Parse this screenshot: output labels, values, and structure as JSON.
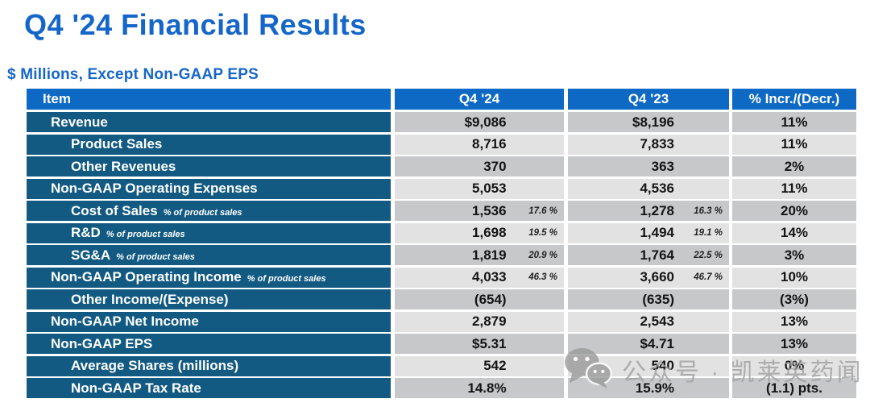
{
  "page": {
    "title": "Q4 '24 Financial Results",
    "subtitle": "$ Millions, Except Non-GAAP EPS"
  },
  "colors": {
    "title_blue": "#1566C9",
    "header_blue": "#0E69C5",
    "label_blue": "#125A82",
    "row_gray_dark": "#C7C8CA",
    "row_gray_light": "#E2E2E3",
    "watermark_gray": "#9F9F9F"
  },
  "table": {
    "headers": [
      "Item",
      "Q4 '24",
      "Q4 '23",
      "% Incr./(Decr.)"
    ],
    "rows": [
      {
        "label": "Revenue",
        "indent": false,
        "note": "",
        "q4_24": "$9,086",
        "q4_24_pct": "",
        "q4_23": "$8,196",
        "q4_23_pct": "",
        "change": "11%"
      },
      {
        "label": "Product Sales",
        "indent": true,
        "note": "",
        "q4_24": "8,716",
        "q4_24_pct": "",
        "q4_23": "7,833",
        "q4_23_pct": "",
        "change": "11%"
      },
      {
        "label": "Other Revenues",
        "indent": true,
        "note": "",
        "q4_24": "370",
        "q4_24_pct": "",
        "q4_23": "363",
        "q4_23_pct": "",
        "change": "2%"
      },
      {
        "label": "Non-GAAP Operating Expenses",
        "indent": false,
        "note": "",
        "q4_24": "5,053",
        "q4_24_pct": "",
        "q4_23": "4,536",
        "q4_23_pct": "",
        "change": "11%"
      },
      {
        "label": "Cost of Sales",
        "indent": true,
        "note": "% of product sales",
        "q4_24": "1,536",
        "q4_24_pct": "17.6 %",
        "q4_23": "1,278",
        "q4_23_pct": "16.3 %",
        "change": "20%"
      },
      {
        "label": "R&D",
        "indent": true,
        "note": "% of product sales",
        "q4_24": "1,698",
        "q4_24_pct": "19.5 %",
        "q4_23": "1,494",
        "q4_23_pct": "19.1 %",
        "change": "14%"
      },
      {
        "label": "SG&A",
        "indent": true,
        "note": "% of product sales",
        "q4_24": "1,819",
        "q4_24_pct": "20.9 %",
        "q4_23": "1,764",
        "q4_23_pct": "22.5 %",
        "change": "3%"
      },
      {
        "label": "Non-GAAP Operating Income",
        "indent": false,
        "note": "% of product sales",
        "q4_24": "4,033",
        "q4_24_pct": "46.3 %",
        "q4_23": "3,660",
        "q4_23_pct": "46.7 %",
        "change": "10%"
      },
      {
        "label": "Other Income/(Expense)",
        "indent": true,
        "note": "",
        "q4_24": "(654)",
        "q4_24_pct": "",
        "q4_23": "(635)",
        "q4_23_pct": "",
        "change": "(3%)"
      },
      {
        "label": "Non-GAAP Net Income",
        "indent": false,
        "note": "",
        "q4_24": "2,879",
        "q4_24_pct": "",
        "q4_23": "2,543",
        "q4_23_pct": "",
        "change": "13%"
      },
      {
        "label": "Non-GAAP EPS",
        "indent": false,
        "note": "",
        "q4_24": "$5.31",
        "q4_24_pct": "",
        "q4_23": "$4.71",
        "q4_23_pct": "",
        "change": "13%"
      },
      {
        "label": "Average Shares (millions)",
        "indent": true,
        "note": "",
        "q4_24": "542",
        "q4_24_pct": "",
        "q4_23": "540",
        "q4_23_pct": "",
        "change": "0%"
      },
      {
        "label": "Non-GAAP Tax Rate",
        "indent": true,
        "note": "",
        "q4_24": "14.8%",
        "q4_24_pct": "",
        "q4_23": "15.9%",
        "q4_23_pct": "",
        "change": "(1.1) pts."
      }
    ]
  },
  "watermark": {
    "icon": "wechat-icon",
    "text": "公众号 · 凯莱英药闻"
  }
}
